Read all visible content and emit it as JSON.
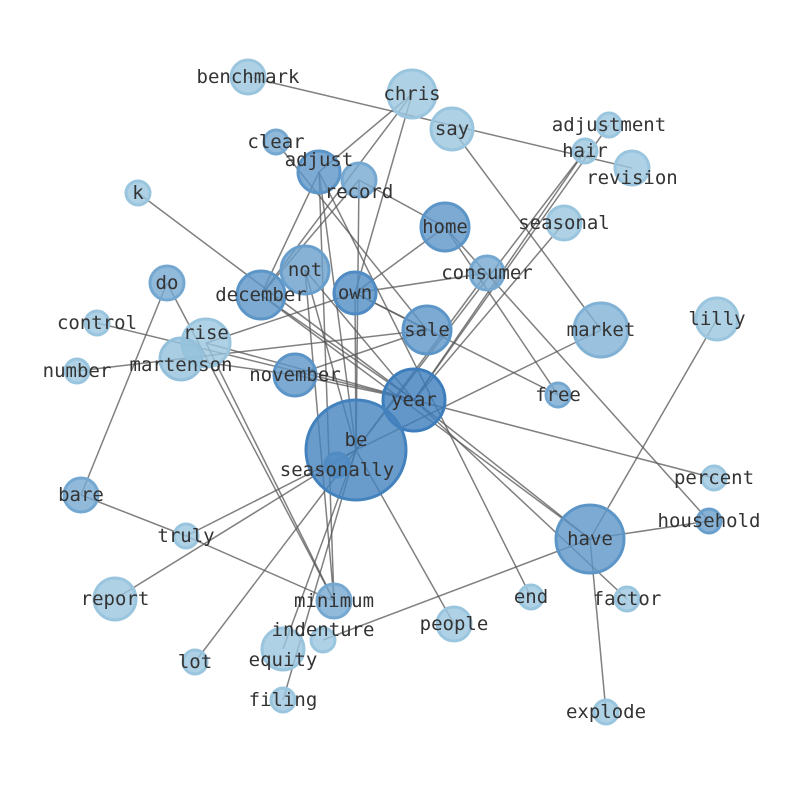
{
  "nodes": [
    "benchmark",
    "chris",
    "say",
    "adjustment",
    "hair",
    "revision",
    "clear",
    "adjust",
    "record",
    "k",
    "seasonal",
    "home",
    "consumer",
    "do",
    "december",
    "not",
    "own",
    "control",
    "rise",
    "martenson",
    "sale",
    "market",
    "lilly",
    "number",
    "november",
    "year",
    "free",
    "be",
    "seasonally",
    "percent",
    "bare",
    "household",
    "truly",
    "have",
    "report",
    "minimum",
    "end",
    "factor",
    "people",
    "indenture",
    "equity",
    "lot",
    "filing",
    "explode"
  ],
  "edges": [
    [
      "benchmark",
      "revision"
    ],
    [
      "chris",
      "adjust"
    ],
    [
      "chris",
      "december"
    ],
    [
      "chris",
      "own"
    ],
    [
      "say",
      "market"
    ],
    [
      "adjustment",
      "year"
    ],
    [
      "hair",
      "year"
    ],
    [
      "hair",
      "be"
    ],
    [
      "seasonal",
      "year"
    ],
    [
      "clear",
      "sale"
    ],
    [
      "k",
      "year"
    ],
    [
      "do",
      "bare"
    ],
    [
      "home",
      "own"
    ],
    [
      "home",
      "free"
    ],
    [
      "home",
      "household"
    ],
    [
      "record",
      "home"
    ],
    [
      "consumer",
      "own"
    ],
    [
      "consumer",
      "be"
    ],
    [
      "december",
      "year"
    ],
    [
      "december",
      "adjust"
    ],
    [
      "december",
      "have"
    ],
    [
      "december",
      "record"
    ],
    [
      "not",
      "year"
    ],
    [
      "not",
      "be"
    ],
    [
      "not",
      "minimum"
    ],
    [
      "own",
      "be"
    ],
    [
      "own",
      "sale"
    ],
    [
      "own",
      "rise"
    ],
    [
      "own",
      "free"
    ],
    [
      "adjust",
      "be"
    ],
    [
      "adjust",
      "end"
    ],
    [
      "adjust",
      "minimum"
    ],
    [
      "record",
      "be"
    ],
    [
      "control",
      "year"
    ],
    [
      "number",
      "sale"
    ],
    [
      "rise",
      "year"
    ],
    [
      "rise",
      "minimum"
    ],
    [
      "martenson",
      "november"
    ],
    [
      "november",
      "sale"
    ],
    [
      "november",
      "year"
    ],
    [
      "be",
      "report"
    ],
    [
      "be",
      "lot"
    ],
    [
      "be",
      "people"
    ],
    [
      "be",
      "equity"
    ],
    [
      "truly",
      "bare"
    ],
    [
      "truly",
      "minimum"
    ],
    [
      "truly",
      "be"
    ],
    [
      "market",
      "be"
    ],
    [
      "lilly",
      "have"
    ],
    [
      "percent",
      "year"
    ],
    [
      "household",
      "have"
    ],
    [
      "have",
      "explode"
    ],
    [
      "have",
      "indenture"
    ],
    [
      "year",
      "have"
    ],
    [
      "year",
      "factor"
    ],
    [
      "be",
      "filing"
    ],
    [
      "do",
      "minimum"
    ]
  ],
  "colors": {
    "node_light": "#a6cee3",
    "node_dark": "#2b6fb5",
    "edge": "#555555",
    "label": "#333333"
  }
}
